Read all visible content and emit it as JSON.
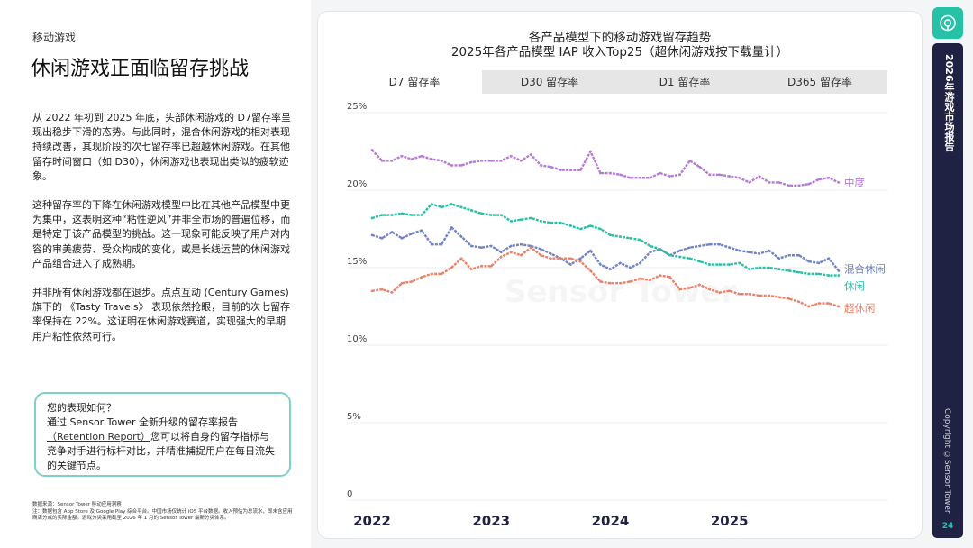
{
  "left": {
    "section": "移动游戏",
    "title": "休闲游戏正面临留存挑战",
    "paragraphs": [
      "从 2022 年初到 2025 年底，头部休闲游戏的 D7留存率呈现出稳步下滑的态势。与此同时，混合休闲游戏的相对表现持续改善，其现阶段的次七留存率已超越休闲游戏。在其他留存时间窗口（如 D30），休闲游戏也表现出类似的疲软迹象。",
      "这种留存率的下降在休闲游戏模型中比在其他产品模型中更为集中，这表明这种“粘性逆风”并非全市场的普遍位移，而是特定于该产品模型的挑战。这一现象可能反映了用户对内容的审美疲劳、受众构成的变化，或是长线运营的休闲游戏产品组合进入了成熟期。",
      "并非所有休闲游戏都在退步。点点互动 (Century Games) 旗下的 《Tasty Travels》 表现依然抢眼，目前的次七留存率保持在 22%。这证明在休闲游戏赛道，实现强大的早期用户粘性依然可行。"
    ],
    "callout": {
      "heading": "您的表现如何？",
      "line1": "通过 Sensor Tower 全新升级的留存率报告",
      "link": "（Retention Report）",
      "line2": "您可以将自身的留存指标与竞争对手进行标杆对比，并精准捕捉用户在每日流失的关键节点。"
    },
    "footnote_source": "数据来源：Sensor Tower 移动应用洞察",
    "footnote_note": "注：数据包含 App Store 及 Google Play 综合平台。中国市场仅统计 iOS 平台数据。收入预估为总流水，即未含应用商店分成的实际金额。游戏分类采用截至 2026 年 1 月的 Sensor Tower 最新分类体系。"
  },
  "chart_tabs": [
    "D7 留存率",
    "D30 留存率",
    "D1 留存率",
    "D365 留存率"
  ],
  "active_tab": "D7 留存率",
  "watermark": "Sensor Tower",
  "sidebar": {
    "report_title": "2026年游戏市场报告",
    "copyright": "Copyright ©Sensor Tower",
    "page_number": "24",
    "accent": "#25c2a8",
    "bar_color": "#1f2242"
  },
  "chart_data": {
    "type": "line",
    "title": "各产品模型下的移动游戏留存趋势",
    "subtitle": "2025年各产品模型 IAP 收入Top25（超休闲游戏按下载量计）",
    "x_ticks": [
      "2022",
      "2023",
      "2024",
      "2025"
    ],
    "x_range": [
      "2022-01",
      "2025-12"
    ],
    "x_frequency": "monthly",
    "y_ticks": [
      "0",
      "5%",
      "10%",
      "15%",
      "20%",
      "25%"
    ],
    "ylim": [
      0,
      25
    ],
    "grid": "horizontal",
    "legend": "inline-right",
    "series": [
      {
        "name": "中度",
        "color": "#b57bd6",
        "values": [
          22.6,
          21.9,
          21.9,
          22.2,
          22.0,
          22.2,
          22.0,
          21.9,
          21.6,
          21.6,
          21.8,
          21.9,
          21.9,
          21.9,
          22.2,
          21.9,
          22.3,
          21.6,
          21.5,
          21.3,
          21.3,
          21.3,
          22.5,
          21.1,
          21.1,
          21.0,
          20.8,
          20.8,
          20.8,
          21.1,
          20.9,
          21.0,
          21.9,
          21.5,
          21.0,
          21.0,
          20.9,
          20.8,
          20.5,
          20.9,
          20.5,
          20.5,
          20.3,
          20.3,
          20.4,
          20.7,
          20.8,
          20.5
        ]
      },
      {
        "name": "混合休闲",
        "color": "#7183c4",
        "values": [
          17.1,
          16.9,
          17.3,
          16.9,
          17.2,
          17.4,
          16.5,
          16.5,
          17.6,
          17.0,
          16.4,
          16.3,
          16.4,
          16.0,
          16.4,
          16.5,
          16.4,
          16.2,
          15.9,
          15.6,
          15.2,
          15.6,
          16.1,
          15.2,
          14.9,
          15.3,
          15.0,
          15.3,
          16.0,
          16.2,
          15.8,
          16.1,
          16.3,
          16.4,
          16.5,
          16.5,
          16.3,
          16.1,
          16.0,
          15.9,
          16.1,
          15.6,
          15.8,
          15.8,
          15.4,
          15.3,
          15.6,
          14.8
        ]
      },
      {
        "name": "休闲",
        "color": "#2bbfa5",
        "values": [
          18.2,
          18.4,
          18.4,
          18.5,
          18.4,
          18.4,
          19.1,
          18.9,
          19.1,
          18.9,
          18.7,
          18.5,
          18.4,
          18.4,
          18.0,
          18.1,
          18.2,
          18.0,
          17.9,
          17.9,
          17.7,
          17.5,
          17.7,
          17.5,
          17.1,
          17.0,
          16.9,
          16.8,
          16.4,
          16.2,
          15.8,
          15.7,
          15.6,
          15.4,
          15.2,
          15.2,
          15.2,
          15.3,
          14.9,
          15.0,
          15.0,
          14.9,
          14.8,
          14.7,
          14.6,
          14.6,
          14.5,
          14.5
        ]
      },
      {
        "name": "超休闲",
        "color": "#e8826a",
        "values": [
          13.5,
          13.6,
          13.4,
          14.0,
          14.1,
          14.4,
          14.6,
          14.6,
          15.0,
          15.6,
          14.9,
          15.1,
          15.1,
          15.7,
          16.0,
          15.8,
          16.3,
          15.8,
          15.6,
          15.6,
          15.6,
          15.4,
          14.8,
          14.1,
          14.0,
          14.0,
          14.1,
          14.3,
          14.2,
          14.5,
          14.4,
          13.6,
          13.7,
          13.9,
          13.6,
          13.4,
          13.5,
          13.3,
          13.3,
          13.2,
          13.2,
          13.1,
          13.0,
          12.8,
          12.5,
          12.7,
          12.7,
          12.5
        ]
      }
    ]
  }
}
